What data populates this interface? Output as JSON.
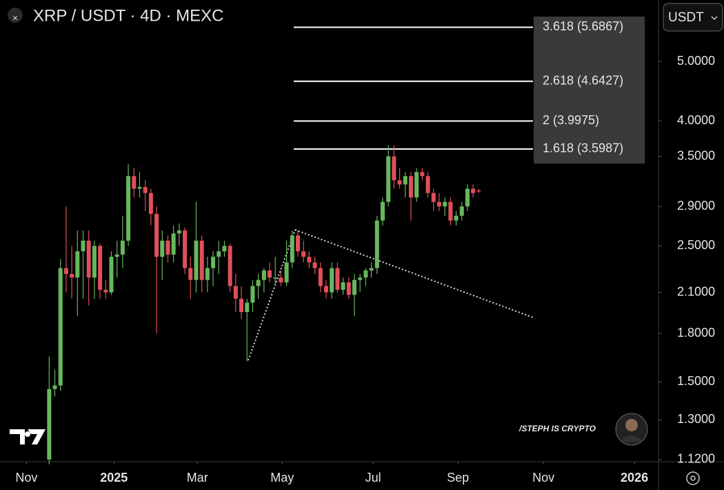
{
  "chart_data": {
    "type": "candlestick",
    "title": "XRP / USDT · 4D · MEXC",
    "currency_selector": "USDT",
    "watermark": "/STEPH IS CRYPTO",
    "log_scale": true,
    "ylim": [
      1.114,
      6.3
    ],
    "yticks": [
      {
        "value": 5,
        "label": "5.0000"
      },
      {
        "value": 4,
        "label": "4.0000"
      },
      {
        "value": 3.5,
        "label": "3.5000"
      },
      {
        "value": 2.9,
        "label": "2.9000"
      },
      {
        "value": 2.5,
        "label": "2.5000"
      },
      {
        "value": 2.1,
        "label": "2.1000"
      },
      {
        "value": 1.8,
        "label": "1.8000"
      },
      {
        "value": 1.5,
        "label": "1.5000"
      },
      {
        "value": 1.3,
        "label": "1.3000"
      },
      {
        "value": 1.12,
        "label": "1.1200"
      }
    ],
    "xlim": [
      -8.7,
      107.8
    ],
    "xticks": [
      {
        "value": -4.02,
        "label": "Nov"
      },
      {
        "value": 11.46,
        "label": "2025"
      },
      {
        "value": 26.22,
        "label": "Mar"
      },
      {
        "value": 41.22,
        "label": "May"
      },
      {
        "value": 57.32,
        "label": "Jul"
      },
      {
        "value": 72.32,
        "label": "Sep"
      },
      {
        "value": 87.44,
        "label": "Nov"
      },
      {
        "value": 103.54,
        "label": "2026"
      }
    ],
    "up_color": "#67b85c",
    "down_color": "#e0505a",
    "fib_color": "#ffffff",
    "fib_levels": [
      {
        "label": "3.618 (5.6867)",
        "value": 5.6867
      },
      {
        "label": "2.618 (4.6427)",
        "value": 4.6427
      },
      {
        "label": "2 (3.9975)",
        "value": 3.9975
      },
      {
        "label": "1.618 (3.5987)",
        "value": 3.5987
      }
    ],
    "open": [
      1.12,
      1.46,
      1.48,
      2.3,
      2.25,
      2.22,
      2.45,
      2.55,
      2.22,
      2.5,
      2.12,
      2.1,
      2.4,
      2.42,
      2.55,
      3.25,
      3.1,
      3.12,
      3.05,
      2.82,
      2.4,
      2.55,
      2.42,
      2.62,
      2.65,
      2.3,
      2.2,
      2.55,
      2.2,
      2.3,
      2.4,
      2.45,
      2.5,
      2.15,
      2.05,
      1.95,
      2.02,
      2.15,
      2.2,
      2.28,
      2.22,
      2.22,
      2.18,
      2.35,
      2.6,
      2.45,
      2.4,
      2.35,
      2.3,
      2.15,
      2.1,
      2.3,
      2.12,
      2.18,
      2.08,
      2.2,
      2.22,
      2.28,
      2.3,
      2.75,
      2.95,
      3.5,
      3.2,
      3.15,
      3.25,
      3.0,
      3.3,
      3.25,
      3.05,
      2.95,
      2.9,
      2.95,
      2.75,
      2.8,
      2.9,
      3.1,
      3.08
    ],
    "high": [
      1.65,
      1.57,
      2.38,
      2.9,
      2.5,
      2.65,
      2.65,
      2.65,
      2.55,
      2.52,
      2.2,
      2.45,
      2.55,
      2.8,
      3.4,
      3.35,
      3.3,
      3.2,
      3.1,
      2.9,
      2.65,
      2.6,
      2.7,
      2.72,
      2.68,
      2.4,
      2.95,
      2.6,
      2.4,
      2.45,
      2.55,
      2.55,
      2.52,
      2.25,
      2.15,
      2.05,
      2.2,
      2.25,
      2.3,
      2.35,
      2.4,
      2.28,
      2.55,
      2.65,
      2.65,
      2.55,
      2.45,
      2.4,
      2.35,
      2.2,
      2.35,
      2.35,
      2.22,
      2.22,
      2.25,
      2.25,
      2.3,
      2.35,
      2.8,
      3.0,
      3.65,
      3.65,
      3.35,
      3.3,
      3.3,
      3.35,
      3.35,
      3.3,
      3.1,
      3.05,
      3.0,
      3.0,
      2.85,
      2.95,
      3.15,
      3.15,
      3.1
    ],
    "low": [
      1.1,
      1.42,
      1.45,
      2.1,
      2.05,
      1.92,
      2.05,
      2.0,
      2.05,
      2.05,
      2.05,
      2.08,
      2.22,
      2.3,
      2.5,
      3.0,
      3.0,
      2.85,
      2.7,
      1.8,
      2.2,
      2.35,
      2.35,
      2.5,
      2.25,
      2.05,
      2.1,
      2.1,
      2.1,
      2.15,
      2.25,
      2.4,
      2.1,
      1.95,
      1.9,
      1.62,
      1.95,
      2.05,
      2.1,
      2.18,
      2.15,
      2.15,
      2.15,
      2.3,
      2.4,
      2.35,
      2.3,
      2.25,
      2.1,
      2.05,
      2.05,
      2.1,
      2.08,
      2.05,
      1.92,
      2.1,
      2.15,
      2.22,
      2.25,
      2.7,
      2.9,
      3.1,
      3.1,
      3.0,
      2.75,
      2.95,
      3.2,
      3.0,
      2.85,
      2.85,
      2.8,
      2.7,
      2.7,
      2.75,
      2.85,
      3.0,
      3.05
    ],
    "close": [
      1.46,
      1.48,
      2.3,
      2.25,
      2.22,
      2.45,
      2.55,
      2.22,
      2.5,
      2.12,
      2.1,
      2.4,
      2.42,
      2.55,
      3.25,
      3.1,
      3.12,
      3.05,
      2.82,
      2.4,
      2.55,
      2.42,
      2.62,
      2.65,
      2.3,
      2.2,
      2.55,
      2.2,
      2.3,
      2.4,
      2.45,
      2.5,
      2.15,
      2.05,
      1.95,
      2.02,
      2.15,
      2.2,
      2.28,
      2.22,
      2.22,
      2.18,
      2.35,
      2.6,
      2.45,
      2.4,
      2.35,
      2.3,
      2.15,
      2.1,
      2.3,
      2.12,
      2.18,
      2.08,
      2.2,
      2.22,
      2.28,
      2.3,
      2.75,
      2.95,
      3.5,
      3.2,
      3.15,
      3.25,
      3.0,
      3.3,
      3.25,
      3.05,
      2.95,
      2.9,
      2.95,
      2.75,
      2.8,
      2.9,
      3.1,
      3.05,
      3.07
    ]
  }
}
